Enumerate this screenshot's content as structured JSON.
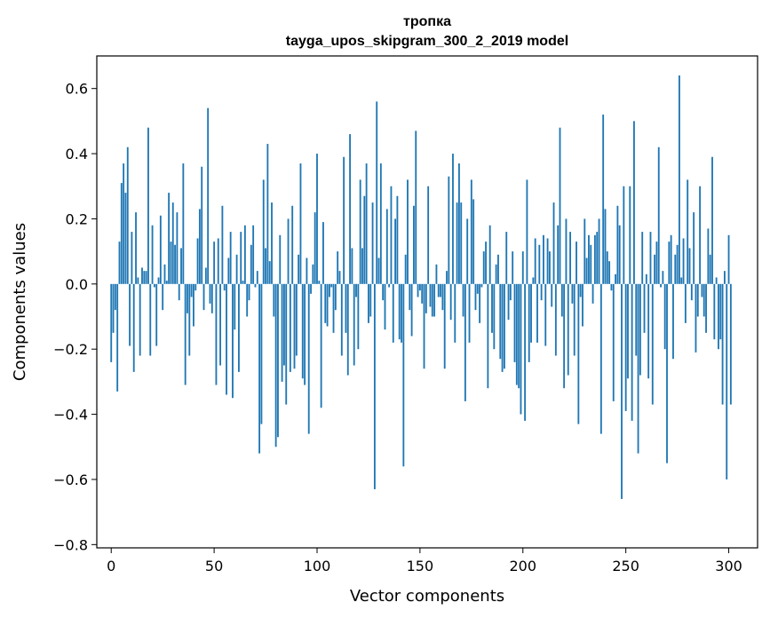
{
  "chart_data": {
    "type": "bar",
    "title": "тропка",
    "subtitle": "tayga_upos_skipgram_300_2_2019 model",
    "xlabel": "Vector components",
    "ylabel": "Components values",
    "xlim": [
      -7,
      314
    ],
    "ylim": [
      -0.81,
      0.7
    ],
    "xticks": [
      0,
      50,
      100,
      150,
      200,
      250,
      300
    ],
    "xtick_labels": [
      "0",
      "50",
      "100",
      "150",
      "200",
      "250",
      "300"
    ],
    "yticks": [
      -0.8,
      -0.6,
      -0.4,
      -0.2,
      0.0,
      0.2,
      0.4,
      0.6
    ],
    "ytick_labels": [
      "−0.8",
      "−0.6",
      "−0.4",
      "−0.2",
      "0.0",
      "0.2",
      "0.4",
      "0.6"
    ],
    "bar_color": "#1f77b4",
    "grid": false,
    "legend": "none",
    "x_start": 0,
    "values": [
      -0.24,
      -0.15,
      -0.08,
      -0.33,
      0.13,
      0.31,
      0.37,
      0.28,
      0.42,
      -0.19,
      0.16,
      -0.27,
      0.22,
      0.02,
      -0.22,
      0.05,
      0.04,
      0.04,
      0.48,
      -0.22,
      0.18,
      -0.01,
      -0.19,
      0.02,
      0.21,
      -0.08,
      0.06,
      0.01,
      0.28,
      0.13,
      0.25,
      0.12,
      0.22,
      -0.05,
      0.11,
      0.37,
      -0.31,
      -0.09,
      -0.22,
      -0.04,
      -0.13,
      -0.02,
      0.14,
      0.23,
      0.36,
      -0.08,
      0.05,
      0.54,
      -0.06,
      -0.09,
      0.13,
      -0.31,
      0.14,
      -0.25,
      0.24,
      -0.02,
      -0.34,
      0.08,
      0.16,
      -0.35,
      -0.14,
      0.09,
      -0.27,
      0.16,
      0.01,
      0.18,
      -0.1,
      -0.05,
      0.12,
      0.18,
      -0.01,
      0.04,
      -0.52,
      -0.43,
      0.32,
      0.11,
      0.43,
      0.07,
      0.25,
      -0.1,
      -0.5,
      -0.47,
      0.15,
      -0.3,
      -0.25,
      -0.37,
      0.2,
      -0.27,
      0.24,
      -0.26,
      -0.22,
      0.09,
      0.37,
      -0.29,
      -0.31,
      0.08,
      -0.46,
      -0.03,
      0.06,
      0.22,
      0.4,
      0.01,
      -0.38,
      0.19,
      -0.12,
      -0.13,
      -0.04,
      -0.01,
      -0.15,
      -0.08,
      0.1,
      0.04,
      -0.22,
      0.39,
      -0.15,
      -0.28,
      0.46,
      0.11,
      -0.25,
      -0.04,
      -0.2,
      0.32,
      0.11,
      0.27,
      0.37,
      -0.12,
      -0.1,
      0.25,
      -0.63,
      0.56,
      0.08,
      0.37,
      -0.05,
      -0.14,
      0.23,
      -0.01,
      0.3,
      -0.18,
      0.2,
      0.27,
      -0.17,
      -0.18,
      -0.56,
      0.09,
      0.32,
      -0.08,
      -0.16,
      0.24,
      0.47,
      -0.04,
      -0.02,
      -0.06,
      -0.26,
      -0.09,
      0.3,
      -0.07,
      -0.1,
      -0.1,
      0.06,
      -0.04,
      -0.04,
      -0.08,
      -0.26,
      0.04,
      0.33,
      -0.11,
      0.4,
      -0.18,
      0.25,
      0.37,
      0.25,
      -0.1,
      -0.36,
      0.2,
      -0.18,
      0.32,
      0.26,
      -0.08,
      -0.03,
      -0.12,
      -0.01,
      0.1,
      0.13,
      -0.32,
      0.18,
      -0.15,
      -0.2,
      0.06,
      0.09,
      -0.23,
      -0.27,
      -0.26,
      0.16,
      -0.11,
      -0.05,
      0.1,
      -0.24,
      -0.31,
      -0.32,
      -0.4,
      0.1,
      -0.42,
      0.32,
      -0.24,
      -0.18,
      0.02,
      0.14,
      -0.18,
      0.12,
      -0.05,
      0.15,
      -0.19,
      0.14,
      0.1,
      -0.07,
      0.25,
      -0.22,
      0.18,
      0.48,
      -0.1,
      -0.32,
      0.2,
      -0.28,
      0.16,
      -0.06,
      -0.22,
      0.13,
      -0.43,
      -0.04,
      -0.13,
      0.2,
      0.08,
      0.15,
      0.12,
      -0.06,
      0.15,
      0.16,
      0.2,
      -0.46,
      0.52,
      0.23,
      0.1,
      0.07,
      -0.02,
      -0.36,
      0.03,
      0.24,
      0.18,
      -0.66,
      0.3,
      -0.39,
      -0.29,
      0.3,
      -0.42,
      0.5,
      -0.22,
      -0.52,
      -0.28,
      0.16,
      -0.15,
      0.03,
      -0.29,
      0.16,
      -0.37,
      0.09,
      0.13,
      0.42,
      -0.01,
      0.04,
      -0.2,
      -0.55,
      0.13,
      0.15,
      -0.23,
      0.09,
      0.12,
      0.64,
      0.02,
      0.14,
      -0.12,
      0.32,
      0.11,
      -0.05,
      0.22,
      -0.21,
      -0.1,
      0.3,
      -0.04,
      -0.1,
      -0.15,
      0.17,
      0.09,
      0.39,
      -0.17,
      0.02,
      -0.2,
      -0.17,
      -0.37,
      0.04,
      -0.6,
      0.15,
      -0.37
    ]
  }
}
